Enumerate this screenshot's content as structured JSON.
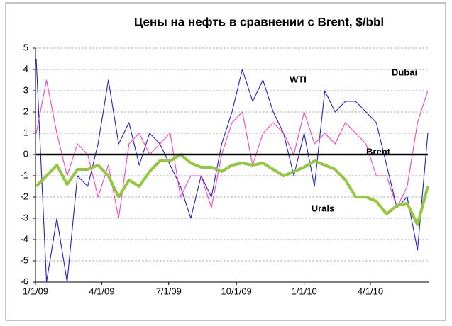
{
  "chart_data": {
    "type": "line",
    "title": "Цены на нефть в сравнении с Brent, $/bbl",
    "x": [
      "2009-01-02",
      "2009-01-16",
      "2009-01-30",
      "2009-02-13",
      "2009-02-27",
      "2009-03-13",
      "2009-03-27",
      "2009-04-10",
      "2009-04-24",
      "2009-05-08",
      "2009-05-22",
      "2009-06-05",
      "2009-06-19",
      "2009-07-03",
      "2009-07-17",
      "2009-07-31",
      "2009-08-14",
      "2009-08-28",
      "2009-09-11",
      "2009-09-25",
      "2009-10-09",
      "2009-10-23",
      "2009-11-06",
      "2009-11-20",
      "2009-12-04",
      "2009-12-18",
      "2010-01-01",
      "2010-01-15",
      "2010-01-29",
      "2010-02-12",
      "2010-02-26",
      "2010-03-12",
      "2010-03-26",
      "2010-04-09",
      "2010-04-23",
      "2010-05-07",
      "2010-05-21",
      "2010-06-04",
      "2010-06-18"
    ],
    "series": [
      {
        "name": "WTI",
        "color": "#1f1fd0",
        "values": [
          4.5,
          -6,
          -3,
          -6,
          -1,
          -1.5,
          0.5,
          3.5,
          0.5,
          1.5,
          -0.5,
          1,
          0.5,
          -0.5,
          -1.5,
          -3,
          -1,
          -2,
          0.5,
          2,
          4,
          2.5,
          3.5,
          2,
          1,
          -1,
          1,
          -1.5,
          3,
          2,
          2.5,
          2.5,
          2,
          1.5,
          -0.5,
          -2.5,
          -2,
          -4.5,
          1
        ]
      },
      {
        "name": "Dubai",
        "color": "#ff3fbf",
        "values": [
          1,
          3.5,
          1,
          -1,
          0.5,
          0,
          -2,
          -0.5,
          -3,
          0.5,
          1,
          0,
          0.5,
          1,
          -2,
          -1,
          -1,
          -2.5,
          0,
          1.5,
          2,
          -0.5,
          1,
          1.5,
          1,
          0,
          2,
          0.5,
          1,
          0.5,
          1.5,
          1,
          0.5,
          -1,
          -1,
          -2.5,
          -1.5,
          1.5,
          3
        ]
      },
      {
        "name": "Urals",
        "color": "#92c83e",
        "values": [
          -1.5,
          -1,
          -0.5,
          -1.4,
          -0.7,
          -0.7,
          -0.5,
          -1,
          -2,
          -1.2,
          -1.5,
          -0.8,
          -0.3,
          -0.3,
          0,
          -0.4,
          -0.6,
          -0.6,
          -0.8,
          -0.5,
          -0.4,
          -0.5,
          -0.4,
          -0.7,
          -1,
          -0.8,
          -0.6,
          -0.3,
          -0.5,
          -0.7,
          -1.2,
          -2,
          -2,
          -2.2,
          -2.8,
          -2.4,
          -2.3,
          -3.3,
          -1.5
        ]
      },
      {
        "name": "Brent",
        "color": "#000000",
        "values": [
          0,
          0,
          0,
          0,
          0,
          0,
          0,
          0,
          0,
          0,
          0,
          0,
          0,
          0,
          0,
          0,
          0,
          0,
          0,
          0,
          0,
          0,
          0,
          0,
          0,
          0,
          0,
          0,
          0,
          0,
          0,
          0,
          0,
          0,
          0,
          0,
          0,
          0,
          0
        ]
      }
    ],
    "xlim": [
      "2009-01-01",
      "2010-06-20"
    ],
    "xticks": [
      {
        "value": "2009-01-01",
        "label": "1/1/09"
      },
      {
        "value": "2009-04-01",
        "label": "4/1/09"
      },
      {
        "value": "2009-07-01",
        "label": "7/1/09"
      },
      {
        "value": "2009-10-01",
        "label": "10/1/09"
      },
      {
        "value": "2010-01-01",
        "label": "1/1/10"
      },
      {
        "value": "2010-04-01",
        "label": "4/1/10"
      }
    ],
    "ylim": [
      -6,
      5
    ],
    "yticks": [
      -6,
      -5,
      -4,
      -3,
      -2,
      -1,
      0,
      1,
      2,
      3,
      4,
      5
    ],
    "grid": true
  }
}
